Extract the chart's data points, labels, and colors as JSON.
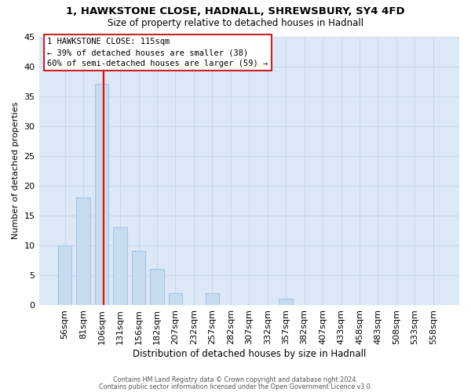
{
  "title1": "1, HAWKSTONE CLOSE, HADNALL, SHREWSBURY, SY4 4FD",
  "title2": "Size of property relative to detached houses in Hadnall",
  "xlabel": "Distribution of detached houses by size in Hadnall",
  "ylabel": "Number of detached properties",
  "bar_color": "#c8dcf0",
  "bar_edge_color": "#a8c4e0",
  "categories": [
    "56sqm",
    "81sqm",
    "106sqm",
    "131sqm",
    "156sqm",
    "182sqm",
    "207sqm",
    "232sqm",
    "257sqm",
    "282sqm",
    "307sqm",
    "332sqm",
    "357sqm",
    "382sqm",
    "407sqm",
    "433sqm",
    "458sqm",
    "483sqm",
    "508sqm",
    "533sqm",
    "558sqm"
  ],
  "values": [
    10,
    18,
    37,
    13,
    9,
    6,
    2,
    0,
    2,
    0,
    0,
    0,
    1,
    0,
    0,
    0,
    0,
    0,
    0,
    0,
    0
  ],
  "property_line_index": 2,
  "ylim": [
    0,
    45
  ],
  "yticks": [
    0,
    5,
    10,
    15,
    20,
    25,
    30,
    35,
    40,
    45
  ],
  "annotation_title": "1 HAWKSTONE CLOSE: 115sqm",
  "annotation_line1": "← 39% of detached houses are smaller (38)",
  "annotation_line2": "60% of semi-detached houses are larger (59) →",
  "footer1": "Contains HM Land Registry data © Crown copyright and database right 2024.",
  "footer2": "Contains public sector information licensed under the Open Government Licence v3.0.",
  "grid_color": "#c8d8ec",
  "background_color": "#ffffff",
  "plot_bg_color": "#dce8f8"
}
